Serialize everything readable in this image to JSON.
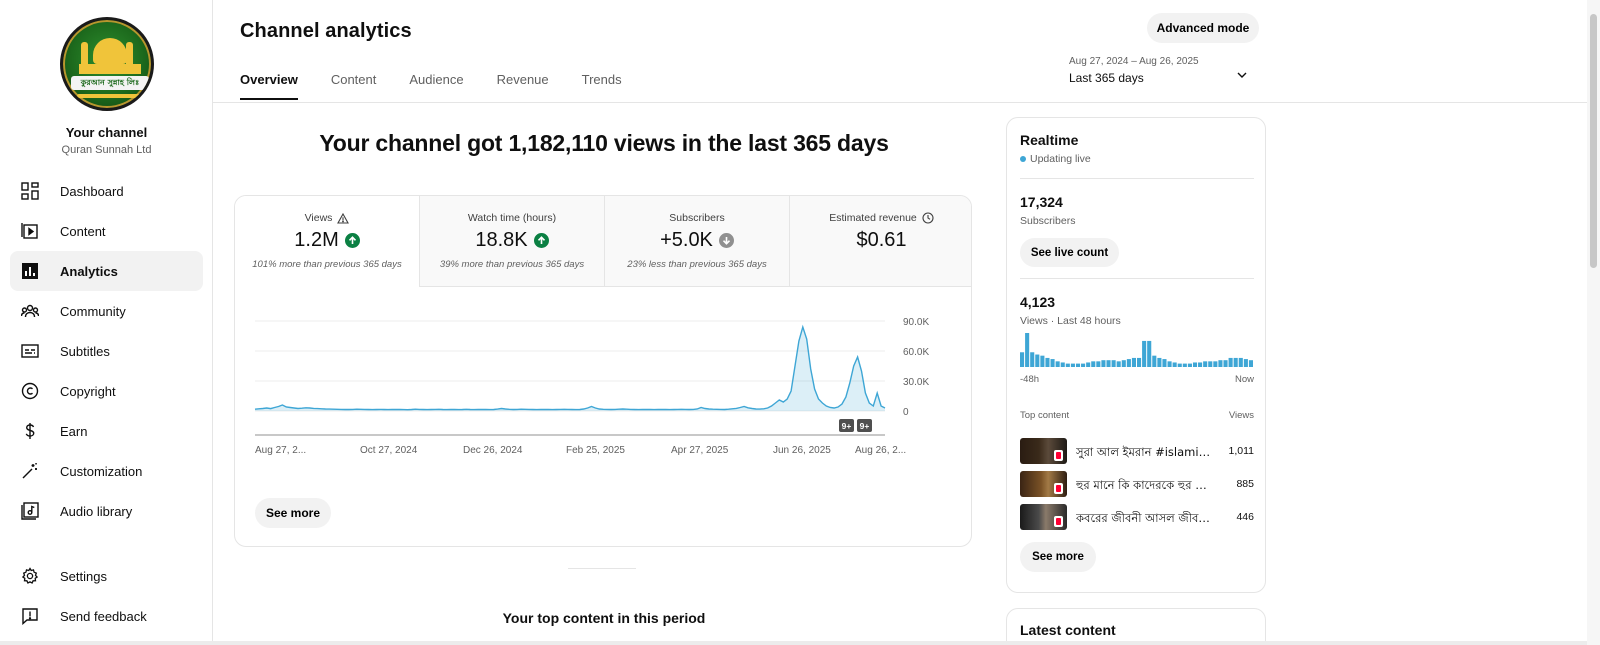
{
  "sidebar": {
    "channel_title": "Your channel",
    "channel_name": "Quran Sunnah Ltd",
    "avatar_text": "কুরআন সুন্নাহ লিঃ",
    "items": [
      {
        "label": "Dashboard",
        "icon": "dashboard-icon"
      },
      {
        "label": "Content",
        "icon": "content-icon"
      },
      {
        "label": "Analytics",
        "icon": "analytics-icon",
        "active": true
      },
      {
        "label": "Community",
        "icon": "community-icon"
      },
      {
        "label": "Subtitles",
        "icon": "subtitles-icon"
      },
      {
        "label": "Copyright",
        "icon": "copyright-icon"
      },
      {
        "label": "Earn",
        "icon": "dollar-icon"
      },
      {
        "label": "Customization",
        "icon": "magic-wand-icon"
      },
      {
        "label": "Audio library",
        "icon": "audio-library-icon"
      },
      {
        "label": "Settings",
        "icon": "gear-icon"
      },
      {
        "label": "Send feedback",
        "icon": "feedback-icon"
      }
    ]
  },
  "header": {
    "title": "Channel analytics",
    "tabs": [
      "Overview",
      "Content",
      "Audience",
      "Revenue",
      "Trends"
    ],
    "active_tab": "Overview",
    "advanced_mode": "Advanced mode",
    "date_range_dates": "Aug 27, 2024 – Aug 26, 2025",
    "date_range_label": "Last 365 days"
  },
  "headline": "Your channel got 1,182,110 views in the last 365 days",
  "metrics": [
    {
      "label": "Views",
      "value": "1.2M",
      "trend": "up",
      "compare": "101% more than previous 365 days",
      "icon": "warning-icon"
    },
    {
      "label": "Watch time (hours)",
      "value": "18.8K",
      "trend": "up",
      "compare": "39% more than previous 365 days"
    },
    {
      "label": "Subscribers",
      "value": "+5.0K",
      "trend": "down",
      "compare": "23% less than previous 365 days"
    },
    {
      "label": "Estimated revenue",
      "value": "$0.61",
      "icon": "clock-icon"
    }
  ],
  "chart_data": {
    "type": "line",
    "title": "",
    "xlabel": "",
    "ylabel": "",
    "x_tick_labels": [
      "Aug 27, 2...",
      "Oct 27, 2024",
      "Dec 26, 2024",
      "Feb 25, 2025",
      "Apr 27, 2025",
      "Jun 26, 2025",
      "Aug 26, 2..."
    ],
    "y_tick_labels": [
      "90.0K",
      "60.0K",
      "30.0K",
      "0"
    ],
    "ylim": [
      0,
      90000
    ],
    "grid": true,
    "x_range": [
      "2024-08-27",
      "2025-08-26"
    ],
    "series": [
      {
        "values": [
          1800,
          2200,
          2500,
          3000,
          2400,
          3500,
          4500,
          6000,
          4000,
          3500,
          3000,
          2500,
          2800,
          3200,
          3000,
          2600,
          2400,
          2200,
          2000,
          1900,
          1800,
          1700,
          1600,
          1500,
          1500,
          1600,
          1800,
          1700,
          1600,
          1500,
          1400,
          1500,
          1600,
          1500,
          1400,
          1500,
          1600,
          1500,
          1400,
          1300,
          1500,
          1800,
          1600,
          1500,
          1400,
          1500,
          1600,
          1700,
          1500,
          1400,
          1500,
          1600,
          1400,
          1500,
          1700,
          1500,
          1400,
          1500,
          1600,
          1500,
          1400,
          1500,
          1900,
          2500,
          2000,
          1700,
          1500,
          1600,
          1800,
          1700,
          1600,
          1500,
          1400,
          1500,
          1600,
          1500,
          1400,
          1500,
          1600,
          1700,
          1600,
          1500,
          1400,
          1500,
          2000,
          3000,
          4500,
          3000,
          2000,
          1700,
          1600,
          1500,
          1600,
          1800,
          2000,
          1800,
          1600,
          1500,
          1400,
          1500,
          1600,
          1500,
          1400,
          1500,
          1600,
          1500,
          1400,
          1500,
          1600,
          1700,
          1600,
          1500,
          1600,
          2000,
          3500,
          2500,
          2000,
          1800,
          1700,
          1600,
          1500,
          1800,
          2200,
          2600,
          3500,
          4500,
          3200,
          2500,
          2000,
          1900,
          2200,
          3000,
          5000,
          8000,
          11000,
          9000,
          12000,
          20000,
          45000,
          70000,
          84000,
          72000,
          42000,
          22000,
          12000,
          8000,
          5000,
          3500,
          3000,
          4000,
          7000,
          14000,
          28000,
          45000,
          54000,
          40000,
          18000,
          8000,
          5000,
          18000,
          5000,
          3000
        ],
        "color": "#3ea6d5"
      }
    ],
    "annotations": [
      "9+",
      "9+"
    ]
  },
  "see_more": "See more",
  "top_content_title": "Your top content in this period",
  "realtime": {
    "title": "Realtime",
    "status": "Updating live",
    "subscribers_value": "17,324",
    "subscribers_label": "Subscribers",
    "live_count_btn": "See live count",
    "views_value": "4,123",
    "views_label": "Views · Last 48 hours",
    "spark_values": [
      13,
      30,
      13,
      11,
      10,
      8,
      7,
      5,
      4,
      3,
      3,
      3,
      3,
      4,
      5,
      5,
      6,
      6,
      6,
      5,
      6,
      7,
      8,
      8,
      23,
      23,
      10,
      8,
      7,
      5,
      4,
      3,
      3,
      3,
      4,
      4,
      5,
      5,
      5,
      6,
      6,
      8,
      8,
      8,
      7,
      6
    ],
    "spark_start": "-48h",
    "spark_end": "Now",
    "top_content_label": "Top content",
    "views_col_label": "Views",
    "top_content": [
      {
        "title": "সুরা আল ইমরান #islamic...",
        "views": "1,011"
      },
      {
        "title": "হুর মানে কি কাদেরকে হুর ব...",
        "views": "885"
      },
      {
        "title": "কবরের জীবনী আসল জীবন ...",
        "views": "446"
      }
    ],
    "see_more": "See more"
  },
  "latest_content": {
    "title": "Latest content"
  },
  "colors": {
    "accent": "#3ea6d5",
    "up": "#0b8043",
    "down": "#909090"
  }
}
